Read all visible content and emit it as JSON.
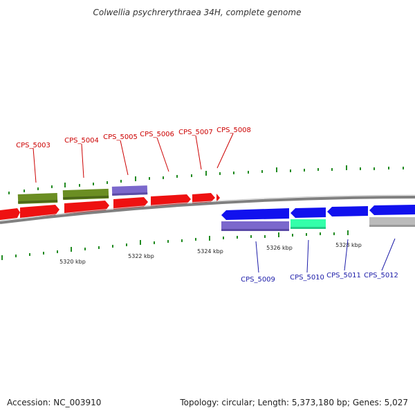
{
  "map": {
    "title": "Colwellia psychrerythraea 34H, complete genome"
  },
  "footer": {
    "accession": "Accession: NC_003910",
    "summary": "Topology: circular; Length: 5,373,180 bp; Genes: 5,027"
  },
  "scale_labels": [
    "5320 kbp",
    "5322 kbp",
    "5324 kbp",
    "5326 kbp",
    "5328 kbp"
  ],
  "gene_labels_top": [
    "CPS_5003",
    "CPS_5004",
    "CPS_5005",
    "CPS_5006",
    "CPS_5007",
    "CPS_5008"
  ],
  "gene_labels_bottom": [
    "CPS_5009",
    "CPS_5010",
    "CPS_5011",
    "CPS_5012"
  ],
  "colors": {
    "forward_cds": "#ee1111",
    "reverse_cds": "#1111ee",
    "feature_green": "#6b8e23",
    "feature_purple": "#7b68cc",
    "feature_teal": "#33ffaa",
    "feature_gray": "#bbbbbb",
    "tick": "#228b22",
    "backbone": "#808080",
    "top_label": "#cc0000",
    "bottom_label": "#1a1aa8"
  }
}
